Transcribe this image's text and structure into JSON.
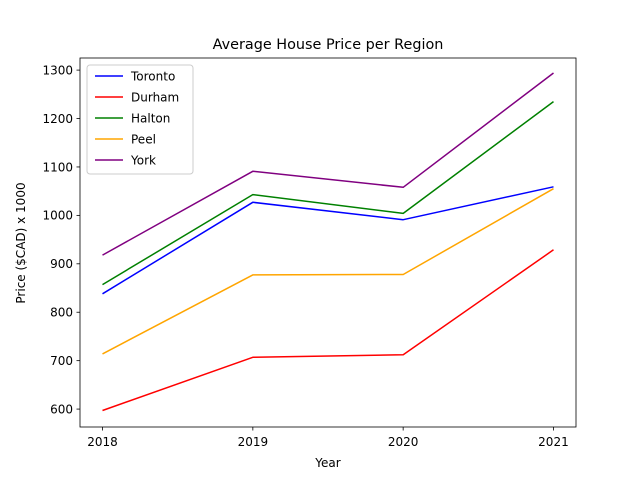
{
  "chart_data": {
    "type": "line",
    "title": "Average House Price per Region",
    "xlabel": "Year",
    "ylabel": "Price ($CAD) x 1000",
    "x": [
      2018,
      2019,
      2020,
      2021
    ],
    "xticks": [
      "2018",
      "2019",
      "2020",
      "2021"
    ],
    "yticks": [
      600,
      700,
      800,
      900,
      1000,
      1100,
      1200,
      1300
    ],
    "ylim": [
      563,
      1325
    ],
    "xlim": [
      2017.85,
      2021.15
    ],
    "grid": false,
    "legend_position": "top-left",
    "series": [
      {
        "name": "Toronto",
        "color": "#0000ff",
        "values": [
          838,
          1027,
          991,
          1059
        ]
      },
      {
        "name": "Durham",
        "color": "#ff0000",
        "values": [
          597,
          707,
          712,
          929
        ]
      },
      {
        "name": "Halton",
        "color": "#008000",
        "values": [
          857,
          1043,
          1004,
          1235
        ]
      },
      {
        "name": "Peel",
        "color": "#ffa500",
        "values": [
          714,
          877,
          878,
          1055
        ]
      },
      {
        "name": "York",
        "color": "#800080",
        "values": [
          918,
          1091,
          1058,
          1294
        ]
      }
    ]
  }
}
